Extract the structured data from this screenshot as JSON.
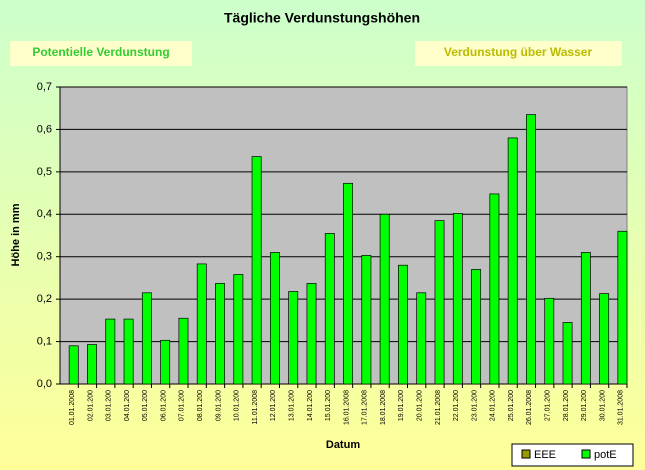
{
  "buttons": [
    "Potentielle Verdunstung",
    "Verdunstung über Wasser"
  ],
  "chart_data": {
    "type": "bar",
    "title": "Tägliche Verdunstungshöhen",
    "x_label": "Datum",
    "y_label": "Höhe in mm",
    "categories": [
      "01.01.2008",
      "02.01.200",
      "03.01.200",
      "04.01.200",
      "05.01.200",
      "06.01.200",
      "07.01.200",
      "08.01.200",
      "09.01.200",
      "10.01.200",
      "11.01.2008",
      "12.01.200",
      "13.01.200",
      "14.01.200",
      "15.01.200",
      "16.01.2008",
      "17.01.2008",
      "18.01.2008",
      "19.01.200",
      "20.01.200",
      "21.01.2008",
      "22.01.200",
      "23.01.200",
      "24.01.200",
      "25.01.200",
      "26.01.2008",
      "27.01.200",
      "28.01.200",
      "29.01.200",
      "30.01.200",
      "31.01.2008"
    ],
    "series": [
      {
        "name": "EEE",
        "color": "#999900",
        "values": [
          null,
          null,
          null,
          null,
          null,
          null,
          null,
          null,
          null,
          null,
          null,
          null,
          null,
          null,
          null,
          null,
          null,
          null,
          null,
          null,
          null,
          null,
          null,
          null,
          null,
          null,
          null,
          null,
          null,
          null,
          null
        ]
      },
      {
        "name": "potE",
        "color": "#00ff00",
        "values": [
          0.09,
          0.093,
          0.153,
          0.153,
          0.215,
          0.103,
          0.155,
          0.283,
          0.237,
          0.258,
          0.536,
          0.31,
          0.218,
          0.237,
          0.355,
          0.473,
          0.303,
          0.4,
          0.28,
          0.215,
          0.385,
          0.402,
          0.27,
          0.448,
          0.58,
          0.635,
          0.202,
          0.145,
          0.31,
          0.213,
          0.36
        ]
      }
    ],
    "ylim": [
      0,
      0.7
    ],
    "yticks": [
      {
        "value": 0,
        "label": "0,0"
      },
      {
        "value": 0.1,
        "label": "0,1"
      },
      {
        "value": 0.2,
        "label": "0,2"
      },
      {
        "value": 0.3,
        "label": "0,3"
      },
      {
        "value": 0.4,
        "label": "0,4"
      },
      {
        "value": 0.5,
        "label": "0,5"
      },
      {
        "value": 0.6,
        "label": "0,6"
      },
      {
        "value": 0.7,
        "label": "0,7"
      }
    ],
    "grid": true,
    "legend": "bottom-right"
  }
}
